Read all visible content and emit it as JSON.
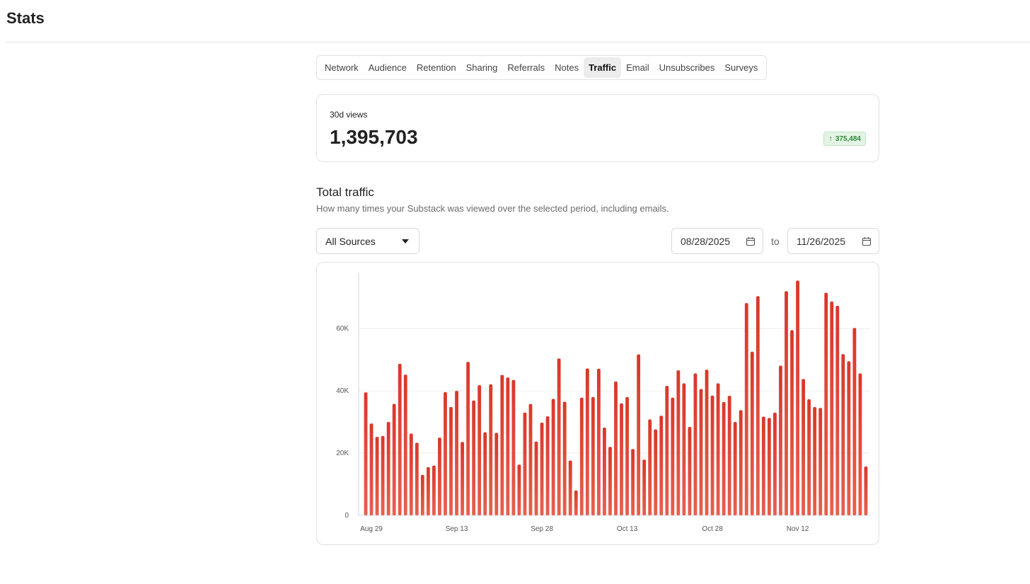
{
  "header": {
    "title": "Stats"
  },
  "tabs": [
    {
      "label": "Network",
      "active": false
    },
    {
      "label": "Audience",
      "active": false
    },
    {
      "label": "Retention",
      "active": false
    },
    {
      "label": "Sharing",
      "active": false
    },
    {
      "label": "Referrals",
      "active": false
    },
    {
      "label": "Notes",
      "active": false
    },
    {
      "label": "Traffic",
      "active": true
    },
    {
      "label": "Email",
      "active": false
    },
    {
      "label": "Unsubscribes",
      "active": false
    },
    {
      "label": "Surveys",
      "active": false
    }
  ],
  "stat": {
    "label": "30d views",
    "value": "1,395,703",
    "change": "375,484",
    "change_icon": "arrow-up-icon",
    "change_color": "#2f8a3b"
  },
  "section": {
    "title": "Total traffic",
    "description": "How many times your Substack was viewed over the selected period, including emails."
  },
  "filters": {
    "source": "All Sources",
    "date_from": "08/28/2025",
    "to_label": "to",
    "date_to": "11/26/2025"
  },
  "chart_data": {
    "type": "bar",
    "color": "#d9372b",
    "ylim": [
      0,
      78000
    ],
    "y_ticks": [
      0,
      20000,
      40000,
      60000
    ],
    "y_tick_labels": [
      "0",
      "20K",
      "40K",
      "60K"
    ],
    "x_tick_labels": [
      "Aug 29",
      "Sep 13",
      "Sep 28",
      "Oct 13",
      "Oct 28",
      "Nov 12"
    ],
    "x_tick_indices": [
      1,
      16,
      31,
      46,
      61,
      76
    ],
    "xlabel": "",
    "ylabel": "",
    "grid": true,
    "values": [
      39500,
      29500,
      25200,
      25500,
      30000,
      35800,
      48700,
      45200,
      26300,
      23300,
      13000,
      15500,
      16000,
      25000,
      39600,
      34800,
      40000,
      23600,
      49300,
      36900,
      41800,
      26700,
      42100,
      26500,
      45100,
      44300,
      43500,
      16300,
      33000,
      35800,
      23700,
      29800,
      31800,
      37400,
      50400,
      36500,
      17600,
      8000,
      37800,
      47200,
      38000,
      47100,
      28200,
      22000,
      43000,
      36000,
      38000,
      21300,
      51700,
      17900,
      30800,
      27600,
      32000,
      41600,
      37800,
      46600,
      42400,
      28400,
      45600,
      40600,
      46800,
      38500,
      42400,
      36400,
      38400,
      30000,
      33800,
      68200,
      52600,
      70400,
      31700,
      31300,
      33000,
      48100,
      72000,
      59500,
      75400,
      43800,
      37300,
      34800,
      34500,
      71500,
      68700,
      67300,
      51800,
      49500,
      60200,
      45600,
      15700
    ],
    "start_date": "Aug 28"
  }
}
